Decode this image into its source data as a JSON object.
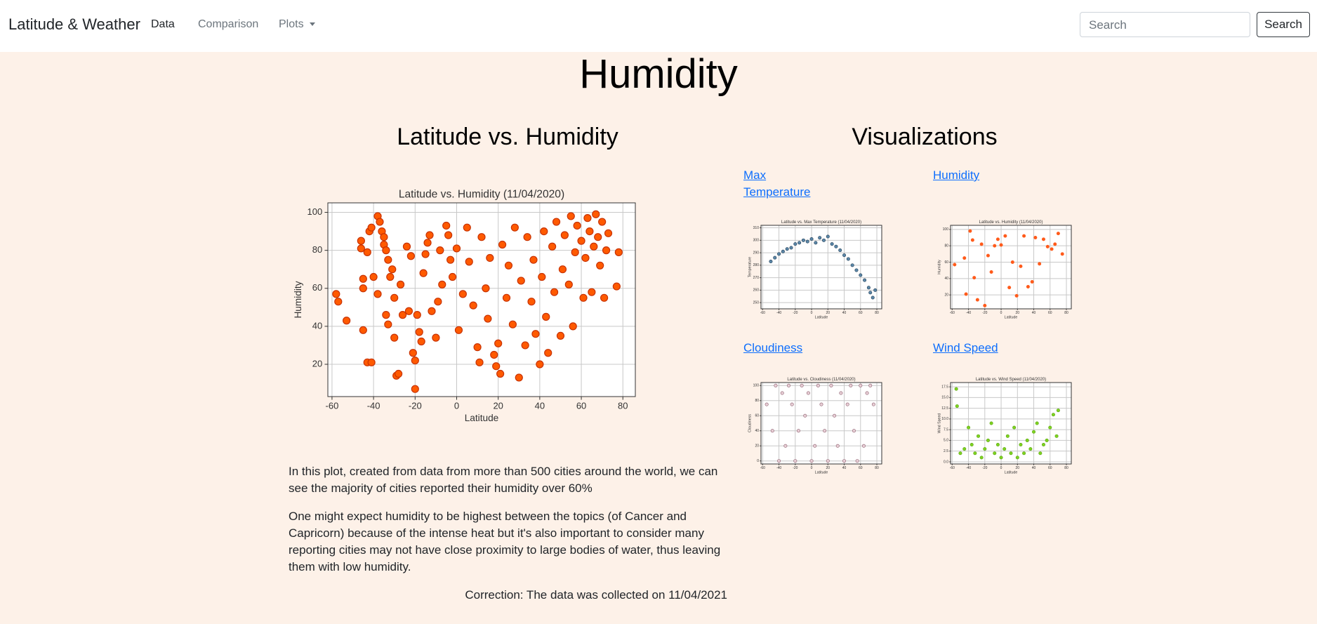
{
  "nav": {
    "brand": "Latitude & Weather",
    "links": [
      "Data",
      "Comparison",
      "Plots"
    ],
    "search_placeholder": "Search",
    "search_button": "Search"
  },
  "page": {
    "title": "Humidity",
    "left_heading": "Latitude vs. Humidity",
    "right_heading": "Visualizations",
    "paragraphs": [
      "In this plot, created from data from more than 500 cities around the world, we can see the majority of cities reported their humidity over 60%",
      "One might expect humidity to be highest between the topics (of Cancer and Capricorn) because of the intense heat but it's also important to consider many reporting cities may not have close proximity to large bodies of water, thus leaving them with low humidity."
    ],
    "correction": "Correction: The data was collected on 11/04/2021",
    "viz_links": [
      "Max Temperature",
      "Humidity",
      "Cloudiness",
      "Wind Speed"
    ]
  },
  "chart_data": [
    {
      "type": "scatter",
      "title": "Latitude vs. Humidity (11/04/2020)",
      "x_label": "Latitude",
      "y_label": "Humidity",
      "xlim": [
        -62,
        86
      ],
      "ylim": [
        3,
        105
      ],
      "xticks": [
        -60,
        -40,
        -20,
        0,
        20,
        40,
        60,
        80
      ],
      "yticks": [
        20,
        40,
        60,
        80,
        100
      ],
      "grid": true,
      "color": "#ff5a00",
      "edge_color": "#c83200",
      "x": [
        -58,
        -57,
        -53,
        -46,
        -46,
        -45,
        -45,
        -45,
        -43,
        -41,
        -43,
        -42,
        -41,
        -40,
        -38,
        -38,
        -37,
        -36,
        -35,
        -35,
        -34,
        -34,
        -33,
        -33,
        -32,
        -31,
        -30,
        -30,
        -29,
        -28,
        -27,
        -26,
        -24,
        -23,
        -22,
        -21,
        -20,
        -20,
        -19,
        -18,
        -17,
        -16,
        -15,
        -14,
        -13,
        -12,
        -10,
        -9,
        -8,
        -7,
        -5,
        -4,
        -3,
        -2,
        0,
        1,
        3,
        5,
        6,
        8,
        10,
        11,
        12,
        14,
        15,
        16,
        18,
        19,
        20,
        21,
        22,
        24,
        25,
        27,
        28,
        30,
        31,
        33,
        34,
        36,
        37,
        38,
        40,
        41,
        42,
        43,
        44,
        46,
        47,
        48,
        50,
        51,
        52,
        54,
        55,
        56,
        57,
        58,
        60,
        61,
        62,
        63,
        64,
        65,
        66,
        67,
        68,
        69,
        70,
        71,
        72,
        73,
        78,
        77
      ],
      "values": [
        57,
        53,
        43,
        85,
        81,
        65,
        60,
        38,
        21,
        21,
        79,
        90,
        92,
        66,
        57,
        98,
        95,
        90,
        87,
        83,
        80,
        46,
        41,
        75,
        66,
        70,
        55,
        34,
        14,
        15,
        62,
        46,
        82,
        48,
        77,
        26,
        22,
        7,
        46,
        37,
        32,
        68,
        78,
        84,
        88,
        48,
        34,
        53,
        80,
        62,
        93,
        88,
        75,
        66,
        81,
        38,
        57,
        92,
        74,
        51,
        29,
        21,
        87,
        60,
        44,
        76,
        25,
        19,
        31,
        15,
        83,
        55,
        72,
        41,
        92,
        13,
        64,
        30,
        87,
        53,
        75,
        36,
        20,
        66,
        90,
        45,
        26,
        82,
        58,
        95,
        35,
        70,
        88,
        62,
        98,
        40,
        79,
        93,
        85,
        55,
        76,
        97,
        90,
        58,
        82,
        99,
        87,
        72,
        95,
        55,
        80,
        89,
        79,
        61
      ]
    },
    {
      "type": "scatter",
      "title": "Latitude vs. Max Temperature (11/04/2020)",
      "x_label": "Latitude",
      "y_label": "Temperature",
      "xlim": [
        -62,
        86
      ],
      "ylim": [
        245,
        312
      ],
      "xticks": [
        -60,
        -40,
        -20,
        0,
        20,
        40,
        60,
        80
      ],
      "yticks": [
        250,
        260,
        270,
        280,
        290,
        300,
        310
      ],
      "grid": true,
      "color": "#5b87a8",
      "edge_color": "#1f3a52",
      "x": [
        -50,
        -45,
        -40,
        -35,
        -30,
        -25,
        -20,
        -15,
        -10,
        -5,
        0,
        5,
        10,
        15,
        20,
        25,
        30,
        35,
        40,
        45,
        50,
        55,
        60,
        65,
        70,
        72,
        75,
        78
      ],
      "values": [
        283,
        286,
        289,
        291,
        293,
        294,
        297,
        298,
        300,
        299,
        301,
        298,
        302,
        300,
        303,
        297,
        295,
        292,
        288,
        285,
        280,
        276,
        272,
        268,
        262,
        258,
        254,
        260
      ]
    },
    {
      "type": "scatter",
      "title": "Latitude vs. Humidity (11/04/2020)",
      "x_label": "Latitude",
      "y_label": "Humidity",
      "xlim": [
        -62,
        86
      ],
      "ylim": [
        3,
        105
      ],
      "xticks": [
        -60,
        -40,
        -20,
        0,
        20,
        40,
        60,
        80
      ],
      "yticks": [
        20,
        40,
        60,
        80,
        100
      ],
      "grid": true,
      "color": "#ff5a1a",
      "edge_color": "#ff5a1a",
      "x": [
        -57,
        -45,
        -43,
        -38,
        -35,
        -33,
        -29,
        -24,
        -20,
        -16,
        -12,
        -8,
        -4,
        0,
        5,
        10,
        14,
        19,
        24,
        28,
        33,
        38,
        42,
        47,
        52,
        57,
        62,
        66,
        70,
        75
      ],
      "values": [
        57,
        65,
        21,
        98,
        87,
        41,
        14,
        82,
        7,
        68,
        48,
        80,
        88,
        81,
        92,
        29,
        60,
        19,
        55,
        92,
        30,
        36,
        90,
        58,
        88,
        79,
        76,
        82,
        95,
        70
      ]
    },
    {
      "type": "scatter",
      "title": "Latitude vs. Cloudiness (11/04/2020)",
      "x_label": "Latitude",
      "y_label": "Cloudiness",
      "xlim": [
        -62,
        86
      ],
      "ylim": [
        -4,
        104
      ],
      "xticks": [
        -60,
        -40,
        -20,
        0,
        20,
        40,
        60,
        80
      ],
      "yticks": [
        0,
        20,
        40,
        60,
        80,
        100
      ],
      "grid": true,
      "color": "#e8cfd6",
      "edge_color": "#8a5a6a",
      "x": [
        -55,
        -48,
        -44,
        -40,
        -36,
        -32,
        -28,
        -24,
        -20,
        -16,
        -12,
        -8,
        -4,
        0,
        4,
        8,
        12,
        16,
        20,
        24,
        28,
        32,
        36,
        40,
        44,
        48,
        52,
        56,
        60,
        64,
        68,
        72,
        76
      ],
      "values": [
        75,
        40,
        100,
        0,
        90,
        20,
        100,
        75,
        0,
        40,
        100,
        60,
        90,
        0,
        20,
        100,
        75,
        40,
        0,
        100,
        60,
        20,
        90,
        0,
        75,
        100,
        40,
        0,
        100,
        20,
        90,
        100,
        75
      ]
    },
    {
      "type": "scatter",
      "title": "Latitude vs. Wind Speed (11/04/2020)",
      "x_label": "Latitude",
      "y_label": "Wind Speed",
      "xlim": [
        -62,
        86
      ],
      "ylim": [
        -0.5,
        18.5
      ],
      "xticks": [
        -60,
        -40,
        -20,
        0,
        20,
        40,
        60,
        80
      ],
      "yticks": [
        {
          "value": 0,
          "label": "0.0"
        },
        2.5,
        {
          "value": 5,
          "label": "5.0"
        },
        7.5,
        {
          "value": 10,
          "label": "10.0"
        },
        12.5,
        {
          "value": 15,
          "label": "15.0"
        },
        17.5
      ],
      "grid": true,
      "color": "#7ed321",
      "edge_color": "#5aa010",
      "x": [
        -55,
        -54,
        -50,
        -45,
        -40,
        -36,
        -32,
        -28,
        -24,
        -20,
        -16,
        -12,
        -8,
        -4,
        0,
        4,
        8,
        12,
        16,
        20,
        24,
        28,
        32,
        36,
        40,
        44,
        48,
        52,
        56,
        60,
        64,
        68,
        70
      ],
      "values": [
        17,
        13,
        2,
        3,
        8,
        4,
        2,
        6,
        1,
        3,
        5,
        9,
        2,
        4,
        1,
        3,
        6,
        2,
        8,
        1,
        4,
        2,
        5,
        3,
        7,
        9,
        2,
        4,
        5,
        8,
        11,
        6,
        12
      ]
    }
  ]
}
